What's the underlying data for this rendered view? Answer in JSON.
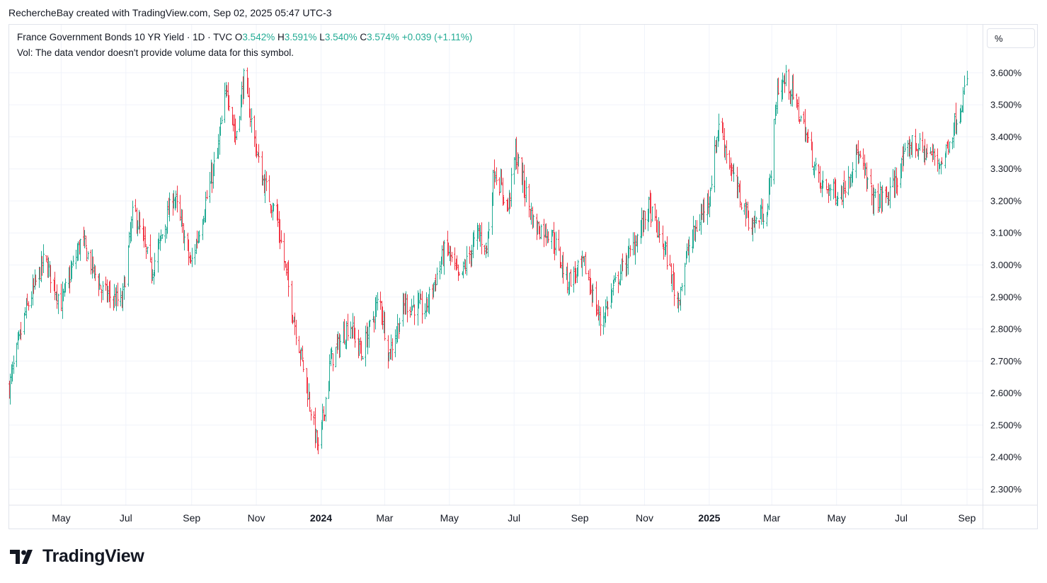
{
  "header": {
    "caption": "RechercheBay created with TradingView.com, Sep 02, 2025 05:47 UTC-3"
  },
  "legend": {
    "symbol": "France Government Bonds 10 YR Yield · 1D · TVC",
    "o_label": "O",
    "o_value": "3.542%",
    "h_label": "H",
    "h_value": "3.591%",
    "l_label": "L",
    "l_value": "3.540%",
    "c_label": "C",
    "c_value": "3.574%",
    "change": "+0.039 (+1.11%)",
    "volume_note": "Vol: The data vendor doesn't provide volume data for this symbol."
  },
  "unit_button": {
    "label": "%"
  },
  "brand": {
    "name": "TradingView"
  },
  "colors": {
    "up": "#22ab94",
    "down": "#f23645",
    "grid": "#f0f3fa",
    "text": "#131722"
  },
  "chart_data": {
    "type": "ohlc",
    "y_axis": {
      "min": 2.25,
      "max": 3.75,
      "side": "right",
      "ticks": [
        2.3,
        2.4,
        2.5,
        2.6,
        2.7,
        2.8,
        2.9,
        3.0,
        3.1,
        3.2,
        3.3,
        3.4,
        3.5,
        3.6
      ],
      "tick_labels": [
        "2.300%",
        "2.400%",
        "2.500%",
        "2.600%",
        "2.700%",
        "2.800%",
        "2.900%",
        "3.000%",
        "3.100%",
        "3.200%",
        "3.300%",
        "3.400%",
        "3.500%",
        "3.600%"
      ]
    },
    "x_axis": {
      "ticks": [
        {
          "label": "May",
          "date": "2023-05-01",
          "bold": false
        },
        {
          "label": "Jul",
          "date": "2023-07-01",
          "bold": false
        },
        {
          "label": "Sep",
          "date": "2023-09-01",
          "bold": false
        },
        {
          "label": "Nov",
          "date": "2023-11-01",
          "bold": false
        },
        {
          "label": "2024",
          "date": "2024-01-01",
          "bold": true
        },
        {
          "label": "Mar",
          "date": "2024-03-01",
          "bold": false
        },
        {
          "label": "May",
          "date": "2024-05-01",
          "bold": false
        },
        {
          "label": "Jul",
          "date": "2024-07-01",
          "bold": false
        },
        {
          "label": "Sep",
          "date": "2024-09-01",
          "bold": false
        },
        {
          "label": "Nov",
          "date": "2024-11-01",
          "bold": false
        },
        {
          "label": "2025",
          "date": "2025-01-01",
          "bold": true
        },
        {
          "label": "Mar",
          "date": "2025-03-01",
          "bold": false
        },
        {
          "label": "May",
          "date": "2025-05-01",
          "bold": false
        },
        {
          "label": "Jul",
          "date": "2025-07-01",
          "bold": false
        },
        {
          "label": "Sep",
          "date": "2025-09-01",
          "bold": false
        }
      ]
    },
    "grid": true,
    "trend_points": [
      {
        "date": "2023-03-13",
        "close": 2.62
      },
      {
        "date": "2023-03-28",
        "close": 2.85
      },
      {
        "date": "2023-04-15",
        "close": 3.02
      },
      {
        "date": "2023-05-01",
        "close": 2.88
      },
      {
        "date": "2023-05-20",
        "close": 3.08
      },
      {
        "date": "2023-06-08",
        "close": 2.92
      },
      {
        "date": "2023-06-27",
        "close": 2.88
      },
      {
        "date": "2023-07-08",
        "close": 3.18
      },
      {
        "date": "2023-07-25",
        "close": 2.98
      },
      {
        "date": "2023-08-15",
        "close": 3.22
      },
      {
        "date": "2023-08-31",
        "close": 3.0
      },
      {
        "date": "2023-09-25",
        "close": 3.35
      },
      {
        "date": "2023-10-04",
        "close": 3.56
      },
      {
        "date": "2023-10-12",
        "close": 3.4
      },
      {
        "date": "2023-10-20",
        "close": 3.58
      },
      {
        "date": "2023-11-05",
        "close": 3.28
      },
      {
        "date": "2023-11-20",
        "close": 3.15
      },
      {
        "date": "2023-12-05",
        "close": 2.85
      },
      {
        "date": "2023-12-15",
        "close": 2.68
      },
      {
        "date": "2023-12-29",
        "close": 2.42
      },
      {
        "date": "2024-01-10",
        "close": 2.7
      },
      {
        "date": "2024-01-28",
        "close": 2.82
      },
      {
        "date": "2024-02-08",
        "close": 2.72
      },
      {
        "date": "2024-02-25",
        "close": 2.9
      },
      {
        "date": "2024-03-05",
        "close": 2.72
      },
      {
        "date": "2024-03-20",
        "close": 2.88
      },
      {
        "date": "2024-04-08",
        "close": 2.86
      },
      {
        "date": "2024-04-28",
        "close": 3.06
      },
      {
        "date": "2024-05-10",
        "close": 2.95
      },
      {
        "date": "2024-05-28",
        "close": 3.1
      },
      {
        "date": "2024-06-05",
        "close": 3.05
      },
      {
        "date": "2024-06-12",
        "close": 3.3
      },
      {
        "date": "2024-06-25",
        "close": 3.18
      },
      {
        "date": "2024-07-02",
        "close": 3.35
      },
      {
        "date": "2024-07-20",
        "close": 3.12
      },
      {
        "date": "2024-08-05",
        "close": 3.1
      },
      {
        "date": "2024-08-20",
        "close": 2.95
      },
      {
        "date": "2024-09-05",
        "close": 3.0
      },
      {
        "date": "2024-09-20",
        "close": 2.82
      },
      {
        "date": "2024-10-05",
        "close": 2.95
      },
      {
        "date": "2024-10-20",
        "close": 3.05
      },
      {
        "date": "2024-11-05",
        "close": 3.18
      },
      {
        "date": "2024-11-20",
        "close": 3.05
      },
      {
        "date": "2024-12-02",
        "close": 2.88
      },
      {
        "date": "2024-12-12",
        "close": 3.05
      },
      {
        "date": "2025-01-01",
        "close": 3.22
      },
      {
        "date": "2025-01-10",
        "close": 3.45
      },
      {
        "date": "2025-01-25",
        "close": 3.25
      },
      {
        "date": "2025-02-10",
        "close": 3.12
      },
      {
        "date": "2025-02-25",
        "close": 3.18
      },
      {
        "date": "2025-03-06",
        "close": 3.55
      },
      {
        "date": "2025-03-15",
        "close": 3.58
      },
      {
        "date": "2025-04-01",
        "close": 3.42
      },
      {
        "date": "2025-04-15",
        "close": 3.25
      },
      {
        "date": "2025-05-05",
        "close": 3.22
      },
      {
        "date": "2025-05-20",
        "close": 3.35
      },
      {
        "date": "2025-06-05",
        "close": 3.2
      },
      {
        "date": "2025-06-20",
        "close": 3.22
      },
      {
        "date": "2025-07-10",
        "close": 3.38
      },
      {
        "date": "2025-07-25",
        "close": 3.35
      },
      {
        "date": "2025-08-08",
        "close": 3.32
      },
      {
        "date": "2025-08-22",
        "close": 3.46
      },
      {
        "date": "2025-09-01",
        "close": 3.574
      }
    ]
  }
}
